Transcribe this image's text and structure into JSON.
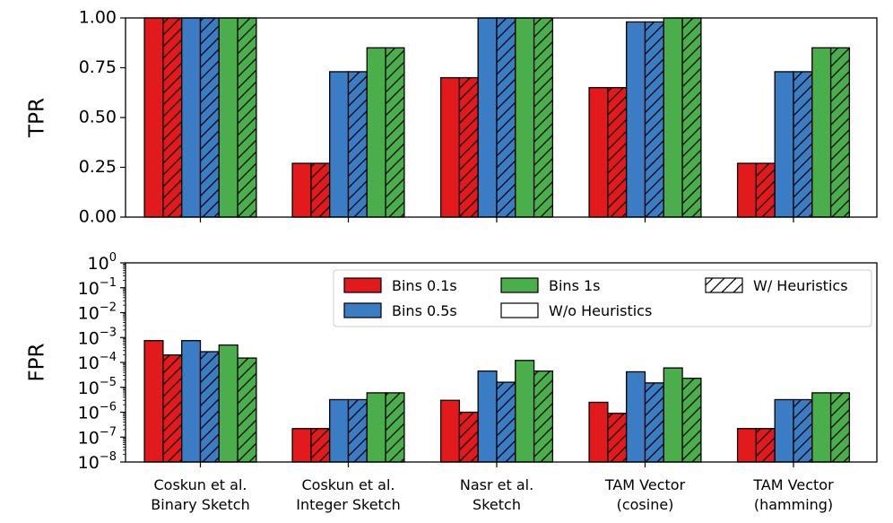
{
  "chart_data": [
    {
      "type": "bar",
      "ylabel": "TPR",
      "yscale": "linear",
      "ylim": [
        0,
        1
      ],
      "yticks": [
        "0.00",
        "0.25",
        "0.50",
        "0.75",
        "1.00"
      ],
      "categories": [
        "Coskun et al. Binary Sketch",
        "Coskun et al. Integer Sketch",
        "Nasr et al. Sketch",
        "TAM Vector (cosine)",
        "TAM Vector (hamming)"
      ],
      "series": [
        {
          "name": "Bins 0.1s W/o Heuristics",
          "values": [
            1.0,
            0.27,
            0.7,
            0.65,
            0.27
          ]
        },
        {
          "name": "Bins 0.1s W/ Heuristics",
          "values": [
            1.0,
            0.27,
            0.7,
            0.65,
            0.27
          ]
        },
        {
          "name": "Bins 0.5s W/o Heuristics",
          "values": [
            1.0,
            0.73,
            1.0,
            0.98,
            0.73
          ]
        },
        {
          "name": "Bins 0.5s W/ Heuristics",
          "values": [
            1.0,
            0.73,
            1.0,
            0.98,
            0.73
          ]
        },
        {
          "name": "Bins 1s W/o Heuristics",
          "values": [
            1.0,
            0.85,
            1.0,
            1.0,
            0.85
          ]
        },
        {
          "name": "Bins 1s W/ Heuristics",
          "values": [
            1.0,
            0.85,
            1.0,
            1.0,
            0.85
          ]
        }
      ]
    },
    {
      "type": "bar",
      "ylabel": "FPR",
      "yscale": "log",
      "ylim": [
        1e-08,
        1
      ],
      "ytick_exponents": [
        "0",
        "−1",
        "−2",
        "−3",
        "−4",
        "−5",
        "−6",
        "−7",
        "−8"
      ],
      "categories": [
        "Coskun et al. Binary Sketch",
        "Coskun et al. Integer Sketch",
        "Nasr et al. Sketch",
        "TAM Vector (cosine)",
        "TAM Vector (hamming)"
      ],
      "series": [
        {
          "name": "Bins 0.1s W/o Heuristics",
          "values": [
            0.00075,
            2.2e-07,
            3e-06,
            2.5e-06,
            2.2e-07
          ]
        },
        {
          "name": "Bins 0.1s W/ Heuristics",
          "values": [
            0.0002,
            2.2e-07,
            1e-06,
            9e-07,
            2.2e-07
          ]
        },
        {
          "name": "Bins 0.5s W/o Heuristics",
          "values": [
            0.00075,
            3.2e-06,
            4.5e-05,
            4.2e-05,
            3.2e-06
          ]
        },
        {
          "name": "Bins 0.5s W/ Heuristics",
          "values": [
            0.00027,
            3.2e-06,
            1.6e-05,
            1.5e-05,
            3.2e-06
          ]
        },
        {
          "name": "Bins 1s W/o Heuristics",
          "values": [
            0.0005,
            6e-06,
            0.00012,
            6e-05,
            6e-06
          ]
        },
        {
          "name": "Bins 1s W/ Heuristics",
          "values": [
            0.00015,
            6e-06,
            4.5e-05,
            2.3e-05,
            6e-06
          ]
        }
      ]
    }
  ],
  "x_tick_labels": [
    {
      "line1": "Coskun et al.",
      "line2": "Binary Sketch"
    },
    {
      "line1": "Coskun et al.",
      "line2": "Integer Sketch"
    },
    {
      "line1": "Nasr et al.",
      "line2": "Sketch"
    },
    {
      "line1": "TAM Vector",
      "line2": "(cosine)"
    },
    {
      "line1": "TAM Vector",
      "line2": "(hamming)"
    }
  ],
  "legend": {
    "placement": "upper-right of lower panel",
    "entries": [
      {
        "label": "Bins 0.1s",
        "color": "#e31a1c",
        "hatch": false
      },
      {
        "label": "Bins 0.5s",
        "color": "#3a7dc4",
        "hatch": false
      },
      {
        "label": "Bins 1s",
        "color": "#4aae4a",
        "hatch": false
      },
      {
        "label": "W/o Heuristics",
        "color": "#ffffff",
        "hatch": false
      },
      {
        "label": "W/ Heuristics",
        "color": "#ffffff",
        "hatch": true
      }
    ]
  },
  "colors": {
    "bins_0_1s": "#e31a1c",
    "bins_0_5s": "#3a7dc4",
    "bins_1s": "#4aae4a"
  },
  "log_base": "10"
}
